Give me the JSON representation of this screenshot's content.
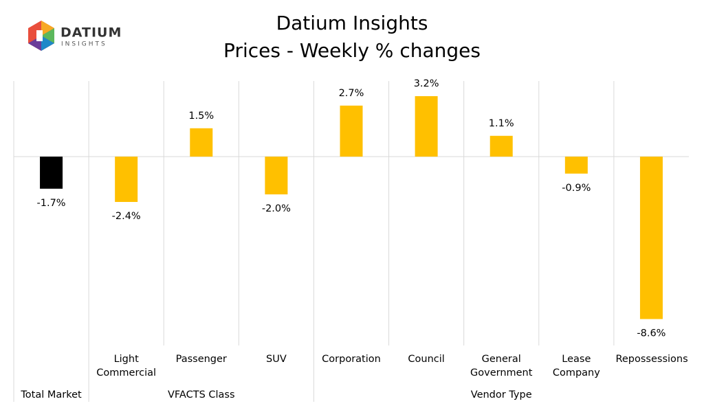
{
  "logo": {
    "name": "DATIUM",
    "tagline": "INSIGHTS"
  },
  "chart_data": {
    "type": "bar",
    "title": "Datium Insights",
    "subtitle": "Prices - Weekly % changes",
    "categories": [
      null,
      "Light Commercial",
      "Passenger",
      "SUV",
      "Corporation",
      "Council",
      "General Government",
      "Lease Company",
      "Repossessions"
    ],
    "groups": [
      {
        "name": "Total Market",
        "count": 1
      },
      {
        "name": "VFACTS Class",
        "count": 3
      },
      {
        "name": "Vendor Type",
        "count": 5
      }
    ],
    "values": [
      -1.7,
      -2.4,
      1.5,
      -2.0,
      2.7,
      3.2,
      1.1,
      -0.9,
      -8.6
    ],
    "value_labels": [
      "-1.7%",
      "-2.4%",
      "1.5%",
      "-2.0%",
      "2.7%",
      "3.2%",
      "1.1%",
      "-0.9%",
      "-8.6%"
    ],
    "colors": [
      "#000000",
      "#ffc000",
      "#ffc000",
      "#ffc000",
      "#ffc000",
      "#ffc000",
      "#ffc000",
      "#ffc000",
      "#ffc000"
    ],
    "ylim": [
      -10,
      4
    ]
  }
}
